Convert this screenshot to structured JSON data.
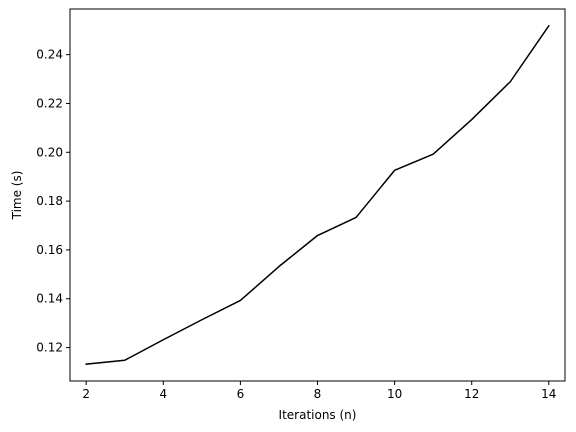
{
  "chart_data": {
    "type": "line",
    "title": "",
    "xlabel": "Iterations (n)",
    "ylabel": "Time (s)",
    "xlim": [
      1.58,
      14.42
    ],
    "ylim": [
      0.1063,
      0.2587
    ],
    "xticks": [
      2,
      4,
      6,
      8,
      10,
      12,
      14
    ],
    "xtick_labels": [
      "2",
      "4",
      "6",
      "8",
      "10",
      "12",
      "14"
    ],
    "yticks": [
      0.12,
      0.14,
      0.16,
      0.18,
      0.2,
      0.22,
      0.24
    ],
    "ytick_labels": [
      "0.12",
      "0.14",
      "0.16",
      "0.18",
      "0.20",
      "0.22",
      "0.24"
    ],
    "grid": false,
    "series": [
      {
        "color": "#000000",
        "x": [
          2,
          3,
          4,
          5,
          6,
          7,
          8,
          9,
          10,
          11,
          12,
          13,
          14
        ],
        "y": [
          0.1132,
          0.1148,
          0.1232,
          0.1314,
          0.1393,
          0.1532,
          0.1659,
          0.1733,
          0.1926,
          0.1992,
          0.2134,
          0.2289,
          0.2518
        ]
      }
    ]
  }
}
